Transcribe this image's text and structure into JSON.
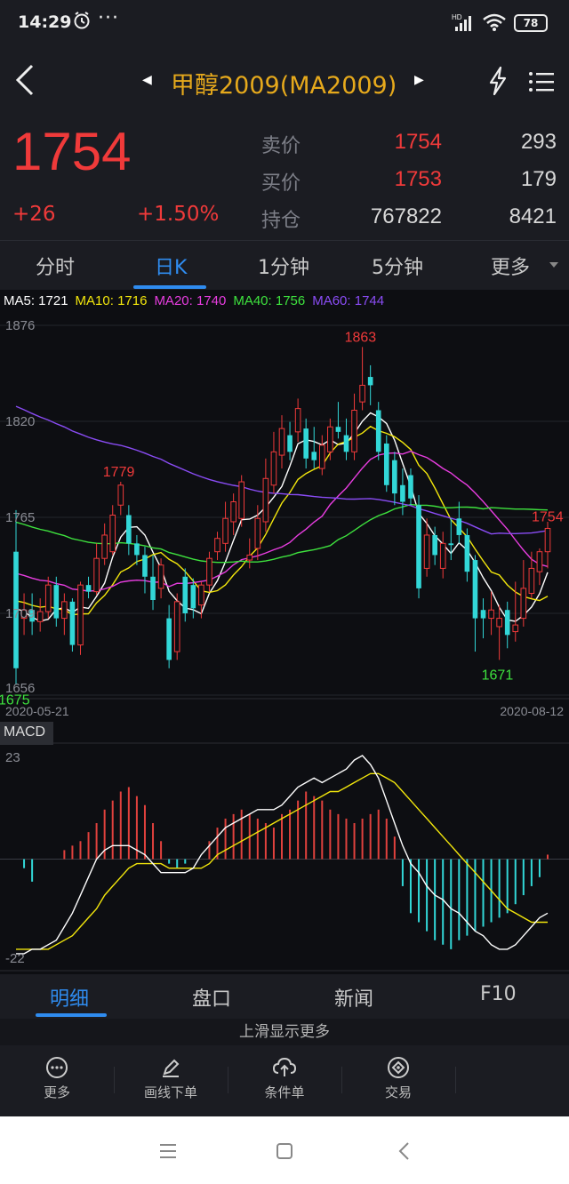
{
  "status_bar": {
    "time": "14:29",
    "dots": "···",
    "battery": "78"
  },
  "title_bar": {
    "title": "甲醇2009(MA2009)"
  },
  "quote": {
    "last_price": "1754",
    "change": "+26",
    "change_pct": "+1.50%",
    "rows": [
      {
        "label": "卖价",
        "value": "1754",
        "volume": "293"
      },
      {
        "label": "买价",
        "value": "1753",
        "volume": "179"
      },
      {
        "label": "持仓",
        "value": "767822",
        "volume": "8421"
      }
    ]
  },
  "tabs": [
    "分时",
    "日K",
    "1分钟",
    "5分钟",
    "更多"
  ],
  "active_tab": "日K",
  "chart_data": {
    "type": "candlestick",
    "ma_legend": [
      {
        "label": "MA5: 1721",
        "color": "#ffffff"
      },
      {
        "label": "MA10: 1716",
        "color": "#f2e60c"
      },
      {
        "label": "MA20: 1740",
        "color": "#e83de0"
      },
      {
        "label": "MA40: 1756",
        "color": "#3ee23e"
      },
      {
        "label": "MA60: 1744",
        "color": "#8a4cf5"
      }
    ],
    "y_ticks": [
      "1876",
      "1820",
      "1765",
      "1709",
      "1656"
    ],
    "ylim": [
      1656,
      1876
    ],
    "x_start": "2020-05-21",
    "x_end": "2020-08-12",
    "annotations": {
      "high": "1863",
      "local_high": "1779",
      "low1": "1675",
      "low2": "1671",
      "last": "1754"
    },
    "candles": [
      [
        1740,
        1670,
        1765,
        1660
      ],
      [
        1700,
        1705,
        1715,
        1690
      ],
      [
        1705,
        1698,
        1715,
        1690
      ],
      [
        1698,
        1704,
        1712,
        1692
      ],
      [
        1704,
        1720,
        1725,
        1700
      ],
      [
        1720,
        1700,
        1725,
        1695
      ],
      [
        1700,
        1710,
        1715,
        1690
      ],
      [
        1710,
        1684,
        1712,
        1680
      ],
      [
        1684,
        1720,
        1722,
        1678
      ],
      [
        1720,
        1716,
        1725,
        1712
      ],
      [
        1716,
        1736,
        1745,
        1714
      ],
      [
        1736,
        1750,
        1757,
        1732
      ],
      [
        1740,
        1762,
        1768,
        1738
      ],
      [
        1768,
        1780,
        1782,
        1762
      ],
      [
        1762,
        1745,
        1768,
        1738
      ],
      [
        1745,
        1738,
        1750,
        1732
      ],
      [
        1738,
        1725,
        1743,
        1715
      ],
      [
        1725,
        1711,
        1738,
        1705
      ],
      [
        1718,
        1732,
        1736,
        1712
      ],
      [
        1700,
        1675,
        1708,
        1670
      ],
      [
        1680,
        1710,
        1715,
        1675
      ],
      [
        1725,
        1703,
        1730,
        1698
      ],
      [
        1720,
        1706,
        1724,
        1700
      ],
      [
        1708,
        1720,
        1722,
        1700
      ],
      [
        1720,
        1736,
        1740,
        1716
      ],
      [
        1740,
        1748,
        1752,
        1735
      ],
      [
        1745,
        1760,
        1770,
        1740
      ],
      [
        1758,
        1770,
        1775,
        1750
      ],
      [
        1760,
        1782,
        1786,
        1755
      ],
      [
        1735,
        1738,
        1748,
        1730
      ],
      [
        1742,
        1760,
        1768,
        1735
      ],
      [
        1758,
        1784,
        1796,
        1752
      ],
      [
        1780,
        1800,
        1812,
        1775
      ],
      [
        1798,
        1814,
        1822,
        1790
      ],
      [
        1810,
        1800,
        1818,
        1795
      ],
      [
        1812,
        1826,
        1832,
        1806
      ],
      [
        1814,
        1796,
        1820,
        1790
      ],
      [
        1800,
        1795,
        1815,
        1790
      ],
      [
        1790,
        1804,
        1810,
        1786
      ],
      [
        1800,
        1815,
        1820,
        1795
      ],
      [
        1815,
        1812,
        1830,
        1808
      ],
      [
        1810,
        1800,
        1820,
        1795
      ],
      [
        1800,
        1825,
        1835,
        1795
      ],
      [
        1830,
        1840,
        1863,
        1825
      ],
      [
        1845,
        1840,
        1852,
        1828
      ],
      [
        1825,
        1800,
        1830,
        1795
      ],
      [
        1805,
        1780,
        1810,
        1776
      ],
      [
        1795,
        1775,
        1800,
        1768
      ],
      [
        1780,
        1770,
        1790,
        1762
      ],
      [
        1786,
        1772,
        1790,
        1768
      ],
      [
        1768,
        1718,
        1774,
        1712
      ],
      [
        1730,
        1750,
        1760,
        1725
      ],
      [
        1750,
        1738,
        1755,
        1732
      ],
      [
        1730,
        1745,
        1752,
        1724
      ],
      [
        1745,
        1744,
        1760,
        1735
      ],
      [
        1760,
        1750,
        1770,
        1745
      ],
      [
        1750,
        1728,
        1754,
        1722
      ],
      [
        1735,
        1700,
        1738,
        1680
      ],
      [
        1705,
        1700,
        1712,
        1688
      ],
      [
        1700,
        1705,
        1716,
        1690
      ],
      [
        1695,
        1700,
        1708,
        1675
      ],
      [
        1705,
        1690,
        1710,
        1682
      ],
      [
        1692,
        1696,
        1722,
        1686
      ],
      [
        1700,
        1718,
        1735,
        1695
      ],
      [
        1715,
        1730,
        1740,
        1712
      ],
      [
        1728,
        1740,
        1742,
        1720
      ],
      [
        1740,
        1754,
        1758,
        1730
      ]
    ],
    "macd": {
      "label": "MACD",
      "y_ticks": [
        "23",
        "-22"
      ],
      "ylim": [
        -22,
        23
      ],
      "bars": [
        0,
        -2,
        -5,
        0,
        0,
        0,
        2,
        3,
        4,
        6,
        8,
        11,
        13,
        15,
        16,
        14,
        12,
        8,
        4,
        -1,
        -2,
        -1,
        0,
        0,
        4,
        7,
        9,
        10,
        11,
        10,
        9,
        8,
        7,
        10,
        11,
        13,
        15,
        14,
        13,
        11,
        10,
        9,
        8,
        9,
        10,
        11,
        9,
        5,
        -6,
        -12,
        -14,
        -16,
        -18,
        -19,
        -20,
        -18,
        -17,
        -16,
        -15,
        -14,
        -13,
        -12,
        -10,
        -8,
        -6,
        -4,
        1
      ],
      "dif": [
        -21,
        -21,
        -20,
        -20,
        -19,
        -18,
        -15,
        -12,
        -8,
        -4,
        0,
        2,
        3,
        3,
        3,
        2,
        1,
        -1,
        -3,
        -3,
        -3,
        -3,
        -2,
        1,
        3,
        5,
        7,
        8,
        9,
        10,
        11,
        11,
        11,
        12,
        14,
        16,
        17,
        18,
        17,
        18,
        19,
        20,
        22,
        23,
        21,
        18,
        13,
        8,
        3,
        -1,
        -3,
        -6,
        -8,
        -9,
        -11,
        -12,
        -14,
        -16,
        -17,
        -19,
        -20,
        -20,
        -19,
        -17,
        -15,
        -13,
        -12
      ],
      "dea": [
        -20,
        -20,
        -20,
        -20,
        -20,
        -19,
        -18,
        -17,
        -15,
        -13,
        -11,
        -8,
        -6,
        -4,
        -2,
        -1,
        -1,
        -1,
        -1,
        -2,
        -2,
        -2,
        -2,
        -2,
        -1,
        1,
        2,
        3,
        4,
        5,
        6,
        7,
        8,
        9,
        10,
        11,
        12,
        13,
        14,
        15,
        15,
        16,
        17,
        18,
        19,
        19,
        18,
        17,
        15,
        13,
        11,
        9,
        7,
        5,
        3,
        1,
        -1,
        -3,
        -5,
        -7,
        -9,
        -11,
        -12,
        -13,
        -14,
        -14,
        -14
      ]
    }
  },
  "bottom_tabs": [
    "明细",
    "盘口",
    "新闻",
    "F10"
  ],
  "active_bottom_tab": "明细",
  "slide_hint": "上滑显示更多",
  "toolbar": [
    "更多",
    "画线下单",
    "条件单",
    "交易"
  ]
}
